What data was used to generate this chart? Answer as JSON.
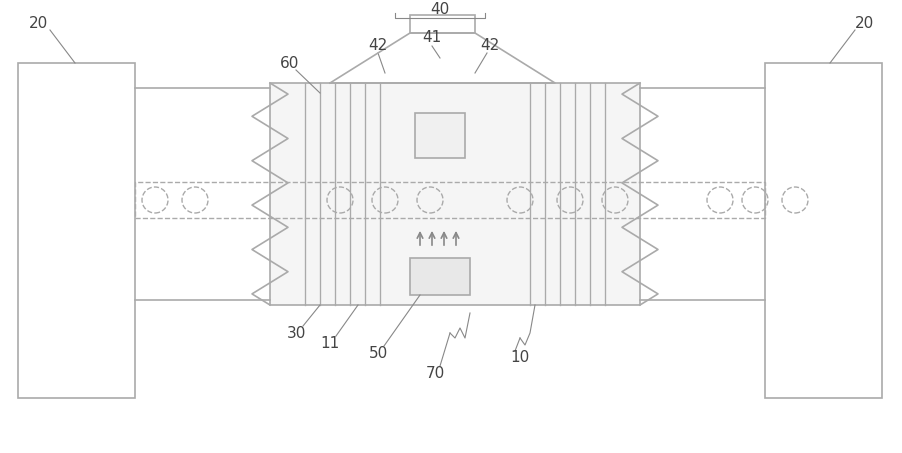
{
  "bg_color": "#ffffff",
  "line_color": "#aaaaaa",
  "line_width": 1.2,
  "fig_width": 9.02,
  "fig_height": 4.53,
  "dpi": 100
}
